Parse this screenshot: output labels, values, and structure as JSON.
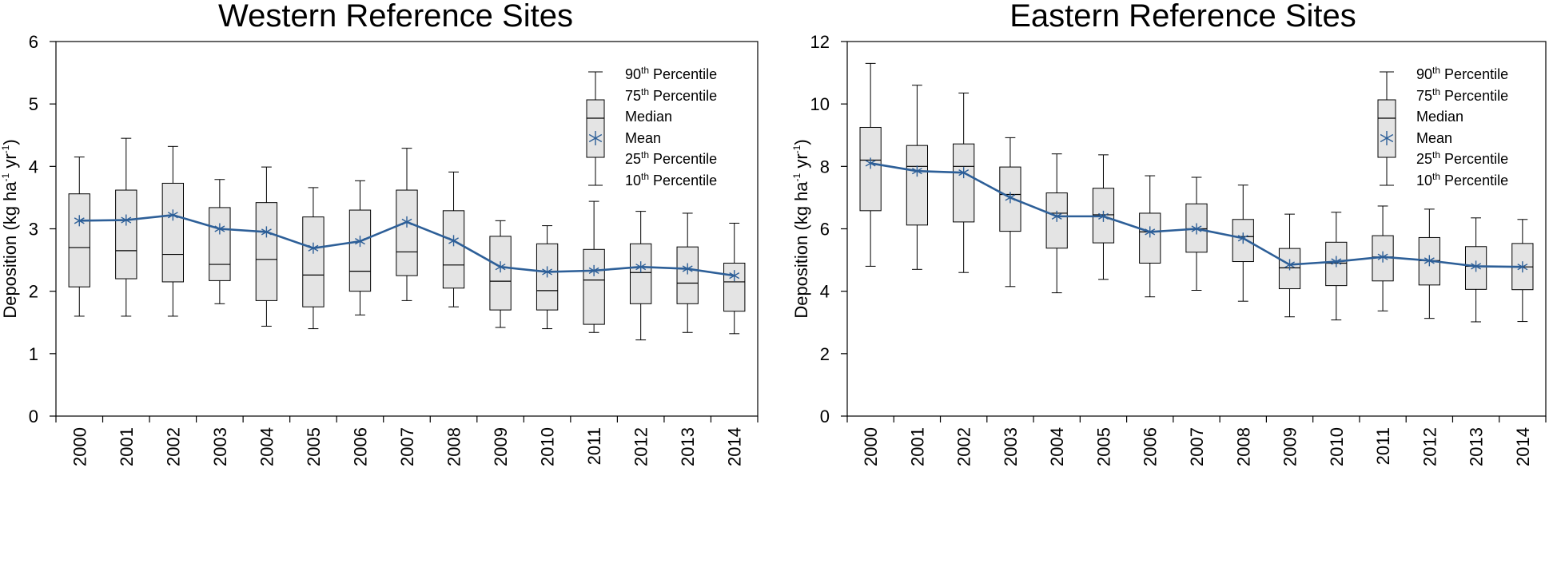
{
  "chart_data": [
    {
      "type": "box",
      "title": "Western Reference Sites",
      "xlabel": "",
      "ylabel_parts": [
        "Deposition (kg ha",
        "-1",
        " yr",
        "-1",
        ")"
      ],
      "ylim": [
        0,
        6
      ],
      "yticks": [
        0,
        1,
        2,
        3,
        4,
        5,
        6
      ],
      "categories": [
        "2000",
        "2001",
        "2002",
        "2003",
        "2004",
        "2005",
        "2006",
        "2007",
        "2008",
        "2009",
        "2010",
        "2011",
        "2012",
        "2013",
        "2014"
      ],
      "series": [
        {
          "name": "10th Percentile",
          "values": [
            1.6,
            1.6,
            1.6,
            1.8,
            1.44,
            1.4,
            1.62,
            1.85,
            1.75,
            1.42,
            1.4,
            1.34,
            1.22,
            1.34,
            1.32
          ]
        },
        {
          "name": "25th Percentile",
          "values": [
            2.07,
            2.2,
            2.15,
            2.17,
            1.85,
            1.75,
            2.0,
            2.25,
            2.05,
            1.7,
            1.7,
            1.47,
            1.8,
            1.8,
            1.68
          ]
        },
        {
          "name": "Median",
          "values": [
            2.7,
            2.65,
            2.59,
            2.43,
            2.51,
            2.26,
            2.32,
            2.63,
            2.42,
            2.16,
            2.01,
            2.18,
            2.3,
            2.13,
            2.15
          ]
        },
        {
          "name": "75th Percentile",
          "values": [
            3.56,
            3.62,
            3.73,
            3.34,
            3.42,
            3.19,
            3.3,
            3.62,
            3.29,
            2.88,
            2.76,
            2.67,
            2.76,
            2.71,
            2.45
          ]
        },
        {
          "name": "90th Percentile",
          "values": [
            4.15,
            4.45,
            4.32,
            3.79,
            3.99,
            3.66,
            3.77,
            4.29,
            3.91,
            3.13,
            3.05,
            3.44,
            3.28,
            3.25,
            3.09
          ]
        },
        {
          "name": "Mean",
          "values": [
            3.13,
            3.14,
            3.22,
            3.0,
            2.95,
            2.69,
            2.8,
            3.11,
            2.81,
            2.39,
            2.31,
            2.33,
            2.39,
            2.36,
            2.25
          ]
        }
      ],
      "legend": {
        "items": [
          {
            "main": "90",
            "sup": "th",
            "rest": " Percentile"
          },
          {
            "main": "75",
            "sup": "th",
            "rest": " Percentile"
          },
          {
            "main": "Median",
            "sup": "",
            "rest": ""
          },
          {
            "main": "Mean",
            "sup": "",
            "rest": ""
          },
          {
            "main": "25",
            "sup": "th",
            "rest": " Percentile"
          },
          {
            "main": "10",
            "sup": "th",
            "rest": " Percentile"
          }
        ]
      }
    },
    {
      "type": "box",
      "title": "Eastern Reference Sites",
      "xlabel": "",
      "ylabel_parts": [
        "Deposition (kg ha",
        "-1",
        " yr",
        "-1",
        ")"
      ],
      "ylim": [
        0,
        12
      ],
      "yticks": [
        0,
        2,
        4,
        6,
        8,
        10,
        12
      ],
      "categories": [
        "2000",
        "2001",
        "2002",
        "2003",
        "2004",
        "2005",
        "2006",
        "2007",
        "2008",
        "2009",
        "2010",
        "2011",
        "2012",
        "2013",
        "2014"
      ],
      "series": [
        {
          "name": "10th Percentile",
          "values": [
            4.8,
            4.7,
            4.6,
            4.15,
            3.95,
            4.38,
            3.82,
            4.03,
            3.68,
            3.18,
            3.08,
            3.37,
            3.13,
            3.02,
            3.03
          ]
        },
        {
          "name": "25th Percentile",
          "values": [
            6.58,
            6.12,
            6.22,
            5.92,
            5.38,
            5.55,
            4.9,
            5.25,
            4.95,
            4.08,
            4.18,
            4.33,
            4.2,
            4.06,
            4.05
          ]
        },
        {
          "name": "Median",
          "values": [
            8.2,
            8.0,
            8.0,
            7.1,
            6.5,
            6.45,
            5.9,
            6.0,
            5.75,
            4.75,
            4.9,
            5.1,
            4.98,
            4.8,
            4.78
          ]
        },
        {
          "name": "75th Percentile",
          "values": [
            9.25,
            8.67,
            8.72,
            7.98,
            7.15,
            7.3,
            6.5,
            6.8,
            6.3,
            5.37,
            5.57,
            5.78,
            5.72,
            5.43,
            5.53
          ]
        },
        {
          "name": "90th Percentile",
          "values": [
            11.3,
            10.6,
            10.35,
            8.92,
            8.4,
            8.37,
            7.7,
            7.65,
            7.4,
            6.47,
            6.53,
            6.73,
            6.63,
            6.35,
            6.3
          ]
        },
        {
          "name": "Mean",
          "values": [
            8.1,
            7.85,
            7.8,
            7.0,
            6.4,
            6.4,
            5.9,
            6.0,
            5.7,
            4.85,
            4.95,
            5.1,
            4.98,
            4.8,
            4.78
          ]
        }
      ],
      "legend": {
        "items": [
          {
            "main": "90",
            "sup": "th",
            "rest": " Percentile"
          },
          {
            "main": "75",
            "sup": "th",
            "rest": " Percentile"
          },
          {
            "main": "Median",
            "sup": "",
            "rest": ""
          },
          {
            "main": "Mean",
            "sup": "",
            "rest": ""
          },
          {
            "main": "25",
            "sup": "th",
            "rest": " Percentile"
          },
          {
            "main": "10",
            "sup": "th",
            "rest": " Percentile"
          }
        ]
      }
    }
  ],
  "colors": {
    "box_fill": "#e4e4e4",
    "mean_line": "#2d5f98",
    "axis": "#000000"
  }
}
